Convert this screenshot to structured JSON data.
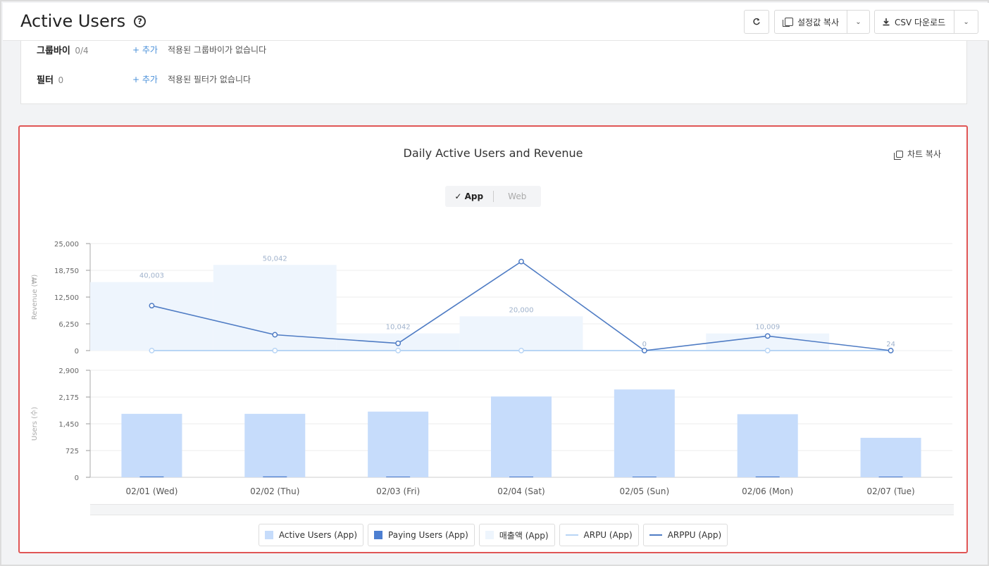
{
  "header": {
    "title": "Active Users",
    "refresh_icon": "refresh-icon",
    "copy_settings_label": "설정값 복사",
    "csv_label": "CSV 다운로드"
  },
  "filters": {
    "groupby": {
      "label": "그룹바이",
      "count": "0/4",
      "add_label": "+ 추가",
      "message": "적용된 그룹바이가 없습니다"
    },
    "filter": {
      "label": "필터",
      "count": "0",
      "add_label": "+ 추가",
      "message": "적용된 필터가 없습니다"
    }
  },
  "chart": {
    "copy_label": "차트 복사",
    "toggle": {
      "app": "App",
      "web": "Web",
      "selected": "App"
    }
  },
  "chart_data": {
    "type": "bar",
    "title": "Daily Active Users and Revenue",
    "categories": [
      "02/01 (Wed)",
      "02/02 (Thu)",
      "02/03 (Fri)",
      "02/04 (Sat)",
      "02/05 (Sun)",
      "02/06 (Mon)",
      "02/07 (Tue)"
    ],
    "top_panel": {
      "ylabel": "Revenue (₩)",
      "yticks": [
        "25,000",
        "18,750",
        "12,500",
        "6,250",
        "0"
      ],
      "ylim": [
        0,
        25000
      ],
      "revenue_bars": {
        "name": "매출액 (App)",
        "values": [
          40003,
          50042,
          10042,
          20000,
          0,
          10009,
          24
        ],
        "labels": [
          "40,003",
          "50,042",
          "10,042",
          "20,000",
          "0",
          "10,009",
          "24"
        ]
      },
      "arpu": {
        "name": "ARPU (App)",
        "values": [
          0,
          0,
          0,
          0,
          0,
          0,
          0
        ]
      },
      "arppu": {
        "name": "ARPPU (App)",
        "values": [
          10500,
          3700,
          1700,
          20800,
          0,
          3400,
          0
        ]
      }
    },
    "bottom_panel": {
      "ylabel": "Users (수)",
      "yticks": [
        "2,900",
        "2,175",
        "1,450",
        "725",
        "0"
      ],
      "ylim": [
        0,
        2900
      ],
      "active_users": {
        "name": "Active Users (App)",
        "values": [
          1720,
          1720,
          1780,
          2190,
          2380,
          1710,
          1070
        ]
      },
      "paying_users": {
        "name": "Paying Users (App)",
        "values": [
          4,
          5,
          1,
          1,
          0,
          3,
          1
        ]
      }
    },
    "colors": {
      "active": "#c6dcfb",
      "paying": "#4d7fd1",
      "revenue": "#eef5fd",
      "arpu": "#b8d5f5",
      "arppu": "#4f7cc4"
    }
  }
}
